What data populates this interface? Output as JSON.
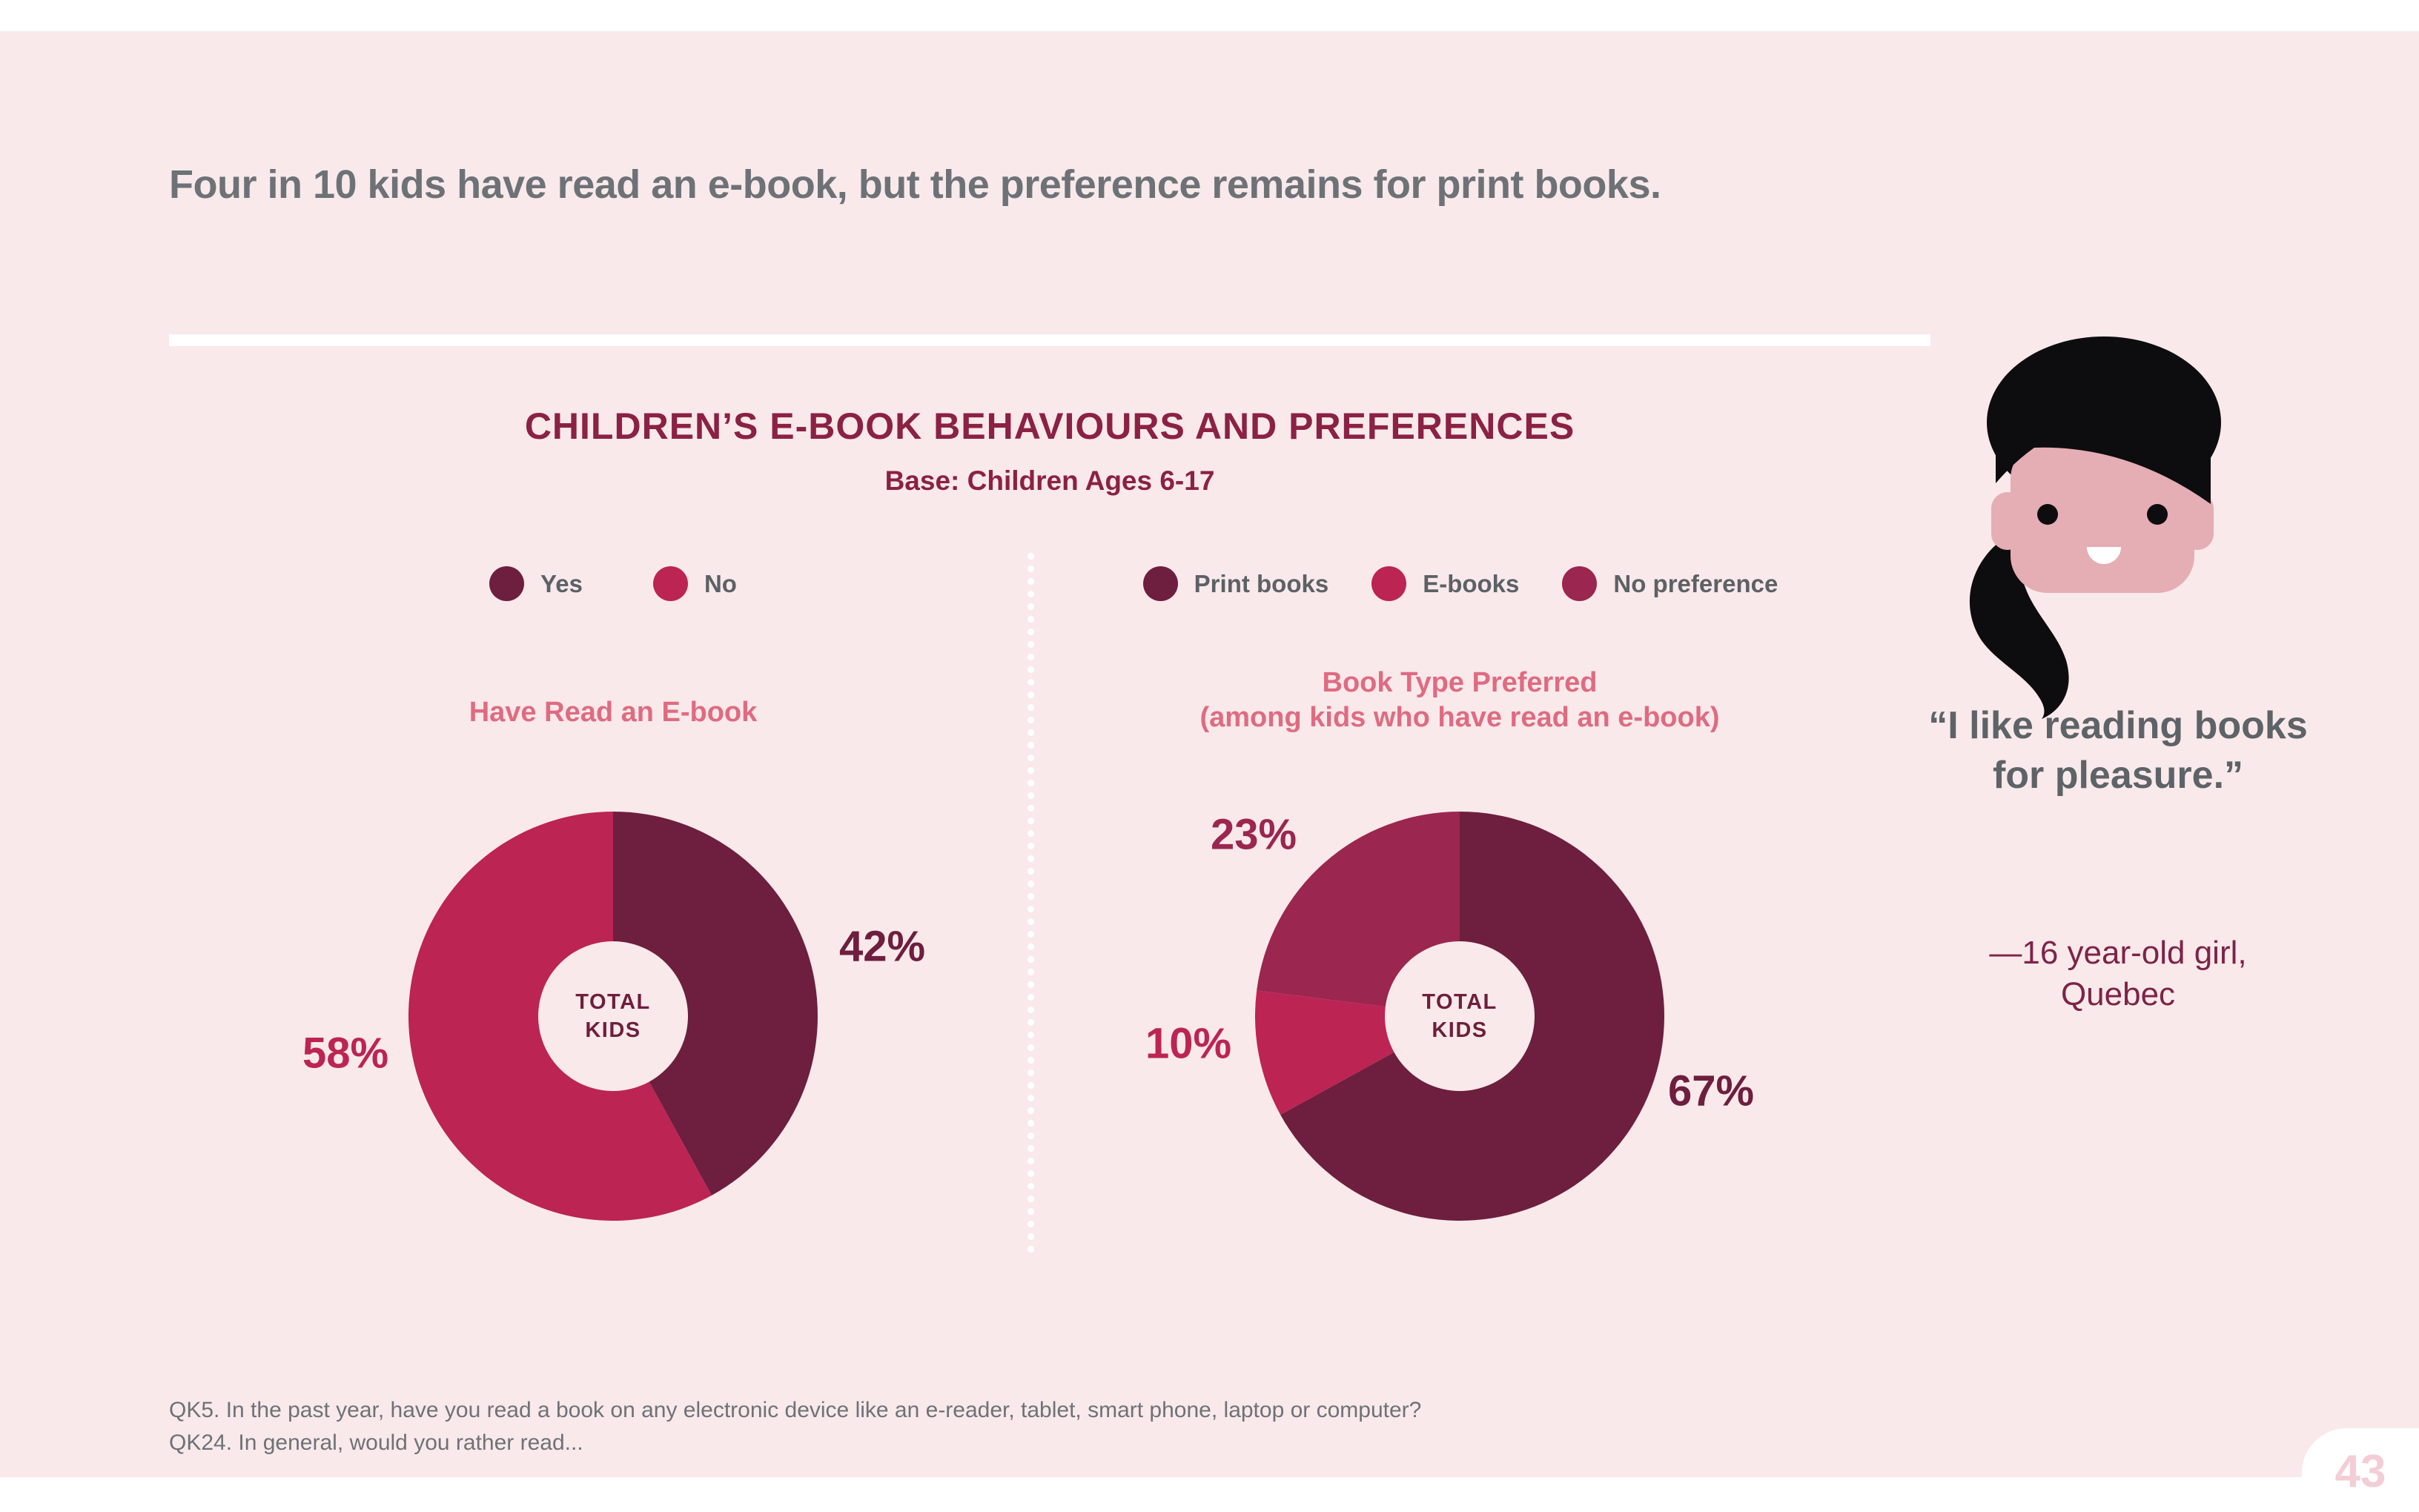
{
  "slide": {
    "title": "Four in 10 kids have read an e-book, but the preference remains for print books.",
    "section_heading": "CHILDREN’S E-BOOK BEHAVIOURS AND PREFERENCES",
    "base_note": "Base: Children Ages 6-17",
    "footnotes": [
      "QK5. In the past year, have you read a book on any electronic device like an e-reader, tablet, smart phone, laptop or computer?",
      "QK24. In general, would you rather read..."
    ],
    "page_number": "43"
  },
  "quote": {
    "text": "“I like reading books for pleasure.”",
    "attribution_line1": "—16 year-old girl,",
    "attribution_line2": "Quebec"
  },
  "colors": {
    "background_pink": "#f9e9ea",
    "dark_maroon": "#6e1e3e",
    "crimson": "#bc2453",
    "berry": "#9b2650",
    "heading_maroon": "#8b2144",
    "rose": "#df6b81",
    "title_gray": "#6d7277",
    "quote_gray": "#5d6367",
    "legend_gray": "#5c6166",
    "attribution_maroon": "#7d2348",
    "face_pink": "#e5adb4",
    "hair_black": "#0d0c0e",
    "page_number_pink": "#f3ced6"
  },
  "chart_data": [
    {
      "type": "pie",
      "donut": true,
      "title": "Have Read an E-book",
      "center_label": "TOTAL KIDS",
      "categories": [
        "Yes",
        "No"
      ],
      "values": [
        42,
        58
      ],
      "unit": "%",
      "colors": [
        "#6e1e3e",
        "#bc2453"
      ],
      "legend_position": "top",
      "start_angle": "12 o'clock, clockwise"
    },
    {
      "type": "pie",
      "donut": true,
      "title": "Book Type Preferred",
      "subtitle": "(among kids who have read an e-book)",
      "center_label": "TOTAL KIDS",
      "categories": [
        "Print books",
        "E-books",
        "No preference"
      ],
      "values": [
        67,
        10,
        23
      ],
      "unit": "%",
      "colors": [
        "#6e1e3e",
        "#bc2453",
        "#9b2650"
      ],
      "legend_position": "top",
      "start_angle": "12 o'clock, clockwise"
    }
  ]
}
